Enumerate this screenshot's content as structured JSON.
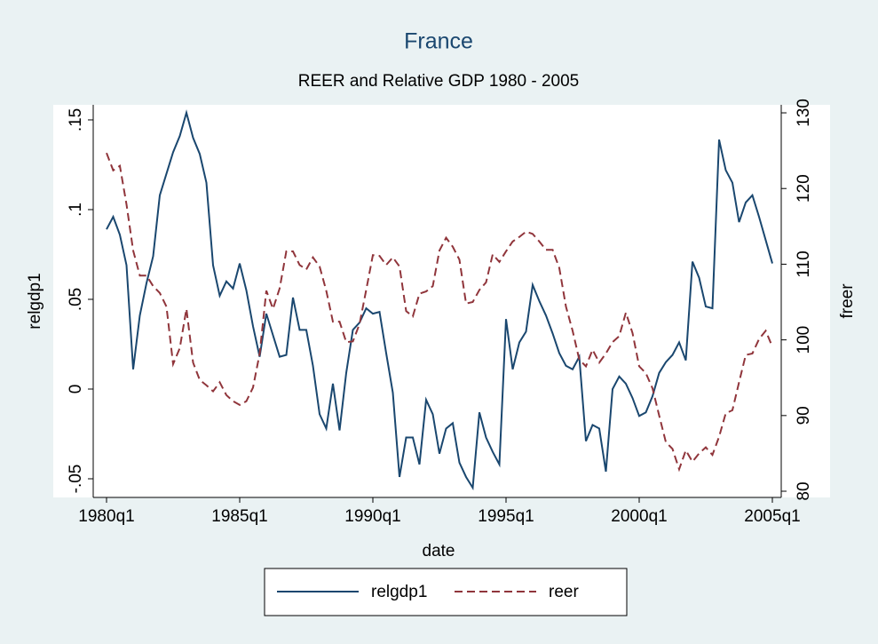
{
  "chart_data": {
    "type": "line",
    "title": "France",
    "subtitle": "REER and Relative GDP 1980 - 2005",
    "x_label": "date",
    "y_label": "relgdp1",
    "y2_label": "freer",
    "x": [
      "1980q1",
      "1980q2",
      "1980q3",
      "1980q4",
      "1981q1",
      "1981q2",
      "1981q3",
      "1981q4",
      "1982q1",
      "1982q2",
      "1982q3",
      "1982q4",
      "1983q1",
      "1983q2",
      "1983q3",
      "1983q4",
      "1984q1",
      "1984q2",
      "1984q3",
      "1984q4",
      "1985q1",
      "1985q2",
      "1985q3",
      "1985q4",
      "1986q1",
      "1986q2",
      "1986q3",
      "1986q4",
      "1987q1",
      "1987q2",
      "1987q3",
      "1987q4",
      "1988q1",
      "1988q2",
      "1988q3",
      "1988q4",
      "1989q1",
      "1989q2",
      "1989q3",
      "1989q4",
      "1990q1",
      "1990q2",
      "1990q3",
      "1990q4",
      "1991q1",
      "1991q2",
      "1991q3",
      "1991q4",
      "1992q1",
      "1992q2",
      "1992q3",
      "1992q4",
      "1993q1",
      "1993q2",
      "1993q3",
      "1993q4",
      "1994q1",
      "1994q2",
      "1994q3",
      "1994q4",
      "1995q1",
      "1995q2",
      "1995q3",
      "1995q4",
      "1996q1",
      "1996q2",
      "1996q3",
      "1996q4",
      "1997q1",
      "1997q2",
      "1997q3",
      "1997q4",
      "1998q1",
      "1998q2",
      "1998q3",
      "1998q4",
      "1999q1",
      "1999q2",
      "1999q3",
      "1999q4",
      "2000q1",
      "2000q2",
      "2000q3",
      "2000q4",
      "2001q1",
      "2001q2",
      "2001q3",
      "2001q4",
      "2002q1",
      "2002q2",
      "2002q3",
      "2002q4",
      "2003q1",
      "2003q2",
      "2003q3",
      "2003q4",
      "2004q1",
      "2004q2",
      "2004q3",
      "2004q4",
      "2005q1"
    ],
    "xticks": [
      "1980q1",
      "1985q1",
      "1990q1",
      "1995q1",
      "2000q1",
      "2005q1"
    ],
    "series": [
      {
        "name": "relgdp1",
        "color": "#1a476f",
        "dash": "solid",
        "axis": "y",
        "values": [
          0.089,
          0.096,
          0.086,
          0.069,
          0.011,
          0.041,
          0.059,
          0.074,
          0.108,
          0.12,
          0.132,
          0.141,
          0.154,
          0.14,
          0.131,
          0.115,
          0.069,
          0.052,
          0.06,
          0.056,
          0.07,
          0.055,
          0.035,
          0.018,
          0.042,
          0.03,
          0.018,
          0.019,
          0.051,
          0.033,
          0.033,
          0.013,
          -0.014,
          -0.022,
          0.003,
          -0.023,
          0.009,
          0.033,
          0.037,
          0.045,
          0.042,
          0.043,
          0.02,
          -0.002,
          -0.049,
          -0.027,
          -0.027,
          -0.042,
          -0.006,
          -0.014,
          -0.036,
          -0.022,
          -0.019,
          -0.041,
          -0.049,
          -0.055,
          -0.013,
          -0.027,
          -0.035,
          -0.042,
          0.039,
          0.011,
          0.026,
          0.032,
          0.058,
          0.049,
          0.041,
          0.031,
          0.02,
          0.013,
          0.011,
          0.018,
          -0.029,
          -0.02,
          -0.022,
          -0.046,
          0.0,
          0.007,
          0.003,
          -0.005,
          -0.015,
          -0.013,
          -0.004,
          0.009,
          0.015,
          0.019,
          0.026,
          0.016,
          0.071,
          0.062,
          0.046,
          0.045,
          0.139,
          0.122,
          0.115,
          0.093,
          0.104,
          0.108,
          0.096,
          0.083,
          0.07
        ]
      },
      {
        "name": "reer",
        "color": "#90353b",
        "dash": "dashed",
        "axis": "y2",
        "values": [
          124.7,
          122.4,
          123.0,
          117.9,
          111.8,
          108.5,
          108.5,
          107.1,
          106.2,
          104.4,
          96.8,
          98.9,
          104.1,
          97.0,
          94.7,
          94.0,
          93.2,
          94.4,
          92.7,
          91.9,
          91.4,
          91.9,
          93.7,
          98.2,
          106.5,
          104.1,
          106.8,
          111.7,
          111.7,
          109.9,
          109.3,
          110.9,
          109.7,
          106.5,
          102.4,
          102.4,
          99.7,
          99.8,
          102.1,
          106.6,
          111.2,
          111.1,
          109.9,
          110.9,
          109.7,
          103.8,
          103.1,
          106.1,
          106.4,
          107.1,
          111.8,
          113.5,
          112.3,
          110.6,
          104.8,
          105.0,
          106.6,
          107.6,
          111.3,
          110.3,
          111.7,
          113.0,
          113.6,
          114.3,
          114.0,
          113.0,
          111.9,
          111.9,
          109.5,
          104.4,
          101.2,
          97.4,
          96.5,
          98.7,
          97.0,
          98.2,
          99.7,
          100.5,
          103.6,
          100.9,
          96.5,
          95.6,
          93.6,
          90.0,
          86.5,
          85.6,
          82.9,
          85.4,
          83.9,
          85.0,
          85.8,
          84.8,
          87.2,
          90.3,
          90.7,
          94.4,
          98.0,
          98.2,
          100.1,
          101.2,
          99.1
        ]
      }
    ],
    "ylim": [
      -0.0604,
      0.1584
    ],
    "yticks": [
      {
        "value": -0.05,
        "label": "-.05"
      },
      0,
      {
        "value": 0.05,
        "label": ".05"
      },
      {
        "value": 0.1,
        "label": ".1"
      },
      {
        "value": 0.15,
        "label": ".15"
      }
    ],
    "y2lim": [
      79.18,
      131.06
    ],
    "y2ticks": [
      80,
      90,
      100,
      110,
      120,
      130
    ],
    "legend": "bottom"
  }
}
